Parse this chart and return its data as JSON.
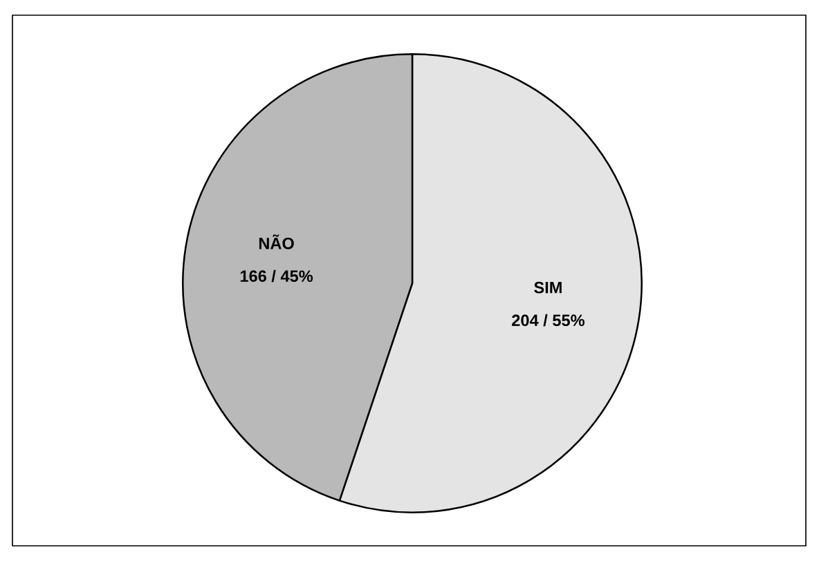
{
  "chart_data": {
    "type": "pie",
    "categories": [
      "SIM",
      "NÃO"
    ],
    "values": [
      204,
      166
    ],
    "colors": [
      "#e4e4e4",
      "#b9b9b9"
    ],
    "value_labels": [
      "204 / 55%",
      "166 / 45%"
    ],
    "legend": false
  }
}
